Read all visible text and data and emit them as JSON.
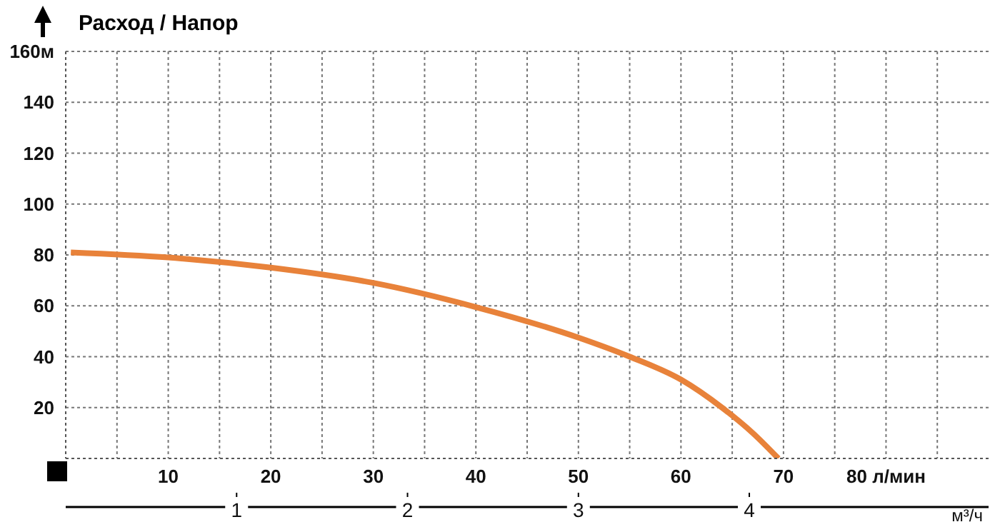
{
  "chart_data": {
    "type": "line",
    "title": "Расход / Напор",
    "x2label": "м³/ч",
    "x": [
      0.5,
      10,
      20,
      30,
      40,
      50,
      55,
      60,
      64,
      67,
      69.5
    ],
    "series": [
      {
        "color": "#e8823a",
        "values": [
          81,
          79,
          75,
          69,
          59.5,
          47.5,
          40,
          31,
          20,
          10,
          0
        ]
      }
    ],
    "xlim": [
      0,
      90
    ],
    "xticks": [
      {
        "value": 5,
        "label": null
      },
      10,
      {
        "value": 15,
        "label": null
      },
      20,
      {
        "value": 25,
        "label": null
      },
      30,
      {
        "value": 35,
        "label": null
      },
      40,
      {
        "value": 45,
        "label": null
      },
      50,
      {
        "value": 55,
        "label": null
      },
      60,
      {
        "value": 65,
        "label": null
      },
      70,
      {
        "value": 75,
        "label": null
      },
      {
        "value": 80,
        "label": "80 л/мин"
      },
      {
        "value": 85,
        "label": null
      }
    ],
    "ylim": [
      0,
      160
    ],
    "yticks": [
      20,
      40,
      60,
      80,
      100,
      120,
      140,
      {
        "value": 160,
        "label": "160м"
      }
    ],
    "x2lim": [
      0,
      5.4
    ],
    "x2ticks": [
      1,
      2,
      3,
      4
    ],
    "grid": true,
    "marker": "none",
    "line_style": "solid"
  }
}
